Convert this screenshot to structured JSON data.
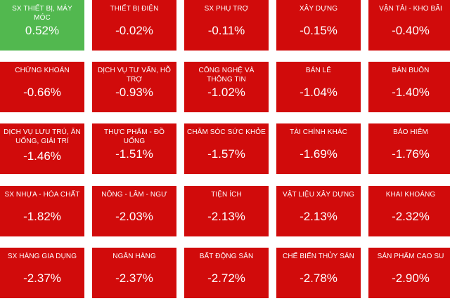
{
  "heatmap": {
    "tiles": [
      {
        "label": "SX THIẾT BỊ, MÁY MÓC",
        "value": "0.52%",
        "change": 0.52
      },
      {
        "label": "THIẾT BỊ ĐIỆN",
        "value": "-0.02%",
        "change": -0.02
      },
      {
        "label": "SX PHỤ TRỢ",
        "value": "-0.11%",
        "change": -0.11
      },
      {
        "label": "XÂY DỰNG",
        "value": "-0.15%",
        "change": -0.15
      },
      {
        "label": "VẬN TẢI - KHO BÃI",
        "value": "-0.40%",
        "change": -0.4
      },
      {
        "label": "CHỨNG KHOÁN",
        "value": "-0.66%",
        "change": -0.66
      },
      {
        "label": "DỊCH VỤ TƯ VẤN, HỖ TRỢ",
        "value": "-0.93%",
        "change": -0.93
      },
      {
        "label": "CÔNG NGHỆ VÀ THÔNG TIN",
        "value": "-1.02%",
        "change": -1.02
      },
      {
        "label": "BÁN LẺ",
        "value": "-1.04%",
        "change": -1.04
      },
      {
        "label": "BÁN BUÔN",
        "value": "-1.40%",
        "change": -1.4
      },
      {
        "label": "DỊCH VỤ LƯU TRÚ, ĂN UỐNG, GIẢI TRÍ",
        "value": "-1.46%",
        "change": -1.46
      },
      {
        "label": "THỰC PHẨM - ĐỒ UỐNG",
        "value": "-1.51%",
        "change": -1.51
      },
      {
        "label": "CHĂM SÓC SỨC KHỎE",
        "value": "-1.57%",
        "change": -1.57
      },
      {
        "label": "TÀI CHÍNH KHÁC",
        "value": "-1.69%",
        "change": -1.69
      },
      {
        "label": "BẢO HIỂM",
        "value": "-1.76%",
        "change": -1.76
      },
      {
        "label": "SX NHỰA - HÓA CHẤT",
        "value": "-1.82%",
        "change": -1.82
      },
      {
        "label": "NÔNG - LÂM - NGƯ",
        "value": "-2.03%",
        "change": -2.03
      },
      {
        "label": "TIỆN ÍCH",
        "value": "-2.13%",
        "change": -2.13
      },
      {
        "label": "VẬT LIỆU XÂY DỰNG",
        "value": "-2.13%",
        "change": -2.13
      },
      {
        "label": "KHAI KHOÁNG",
        "value": "-2.32%",
        "change": -2.32
      },
      {
        "label": "SX HÀNG GIA DỤNG",
        "value": "-2.37%",
        "change": -2.37
      },
      {
        "label": "NGÂN HÀNG",
        "value": "-2.37%",
        "change": -2.37
      },
      {
        "label": "BẤT ĐỘNG SẢN",
        "value": "-2.72%",
        "change": -2.72
      },
      {
        "label": "CHẾ BIẾN THỦY SẢN",
        "value": "-2.78%",
        "change": -2.78
      },
      {
        "label": "SẢN PHẨM CAO SU",
        "value": "-2.90%",
        "change": -2.9
      }
    ]
  },
  "colors": {
    "positive": "#52b84f",
    "negative": "#d10b0b",
    "text": "#ffffff",
    "background": "#ffffff"
  }
}
